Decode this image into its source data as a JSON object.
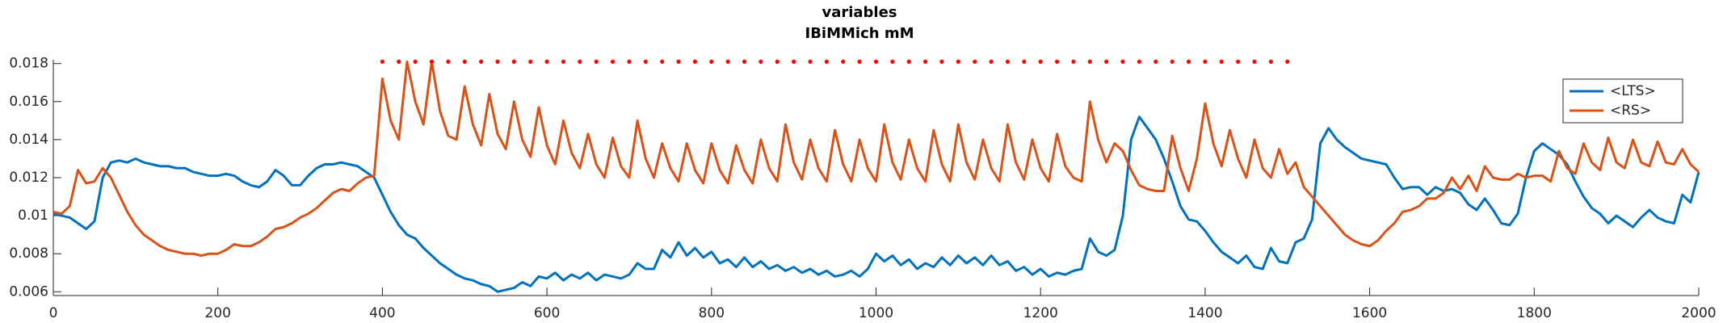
{
  "chart_data": {
    "type": "line",
    "title": "variables",
    "subtitle": "IBiMMich mM",
    "x": [
      0,
      10,
      20,
      30,
      40,
      50,
      60,
      70,
      80,
      90,
      100,
      110,
      120,
      130,
      140,
      150,
      160,
      170,
      180,
      190,
      200,
      210,
      220,
      230,
      240,
      250,
      260,
      270,
      280,
      290,
      300,
      310,
      320,
      330,
      340,
      350,
      360,
      370,
      380,
      390,
      400,
      410,
      420,
      430,
      440,
      450,
      460,
      470,
      480,
      490,
      500,
      510,
      520,
      530,
      540,
      550,
      560,
      570,
      580,
      590,
      600,
      610,
      620,
      630,
      640,
      650,
      660,
      670,
      680,
      690,
      700,
      710,
      720,
      730,
      740,
      750,
      760,
      770,
      780,
      790,
      800,
      810,
      820,
      830,
      840,
      850,
      860,
      870,
      880,
      890,
      900,
      910,
      920,
      930,
      940,
      950,
      960,
      970,
      980,
      990,
      1000,
      1010,
      1020,
      1030,
      1040,
      1050,
      1060,
      1070,
      1080,
      1090,
      1100,
      1110,
      1120,
      1130,
      1140,
      1150,
      1160,
      1170,
      1180,
      1190,
      1200,
      1210,
      1220,
      1230,
      1240,
      1250,
      1260,
      1270,
      1280,
      1290,
      1300,
      1310,
      1320,
      1330,
      1340,
      1350,
      1360,
      1370,
      1380,
      1390,
      1400,
      1410,
      1420,
      1430,
      1440,
      1450,
      1460,
      1470,
      1480,
      1490,
      1500,
      1510,
      1520,
      1530,
      1540,
      1550,
      1560,
      1570,
      1580,
      1590,
      1600,
      1610,
      1620,
      1630,
      1640,
      1650,
      1660,
      1670,
      1680,
      1690,
      1700,
      1710,
      1720,
      1730,
      1740,
      1750,
      1760,
      1770,
      1780,
      1790,
      1800,
      1810,
      1820,
      1830,
      1840,
      1850,
      1860,
      1870,
      1880,
      1890,
      1900,
      1910,
      1920,
      1930,
      1940,
      1950,
      1960,
      1970,
      1980,
      1990,
      2000
    ],
    "series": [
      {
        "name": "<LTS>",
        "color": "#0072bd",
        "values": [
          0.0101,
          0.01,
          0.0099,
          0.0096,
          0.0093,
          0.0097,
          0.012,
          0.0128,
          0.0129,
          0.0128,
          0.013,
          0.0128,
          0.0127,
          0.0126,
          0.0126,
          0.0125,
          0.0125,
          0.0123,
          0.0122,
          0.0121,
          0.0121,
          0.0122,
          0.0121,
          0.0118,
          0.0116,
          0.0115,
          0.0118,
          0.0124,
          0.0121,
          0.0116,
          0.0116,
          0.0121,
          0.0125,
          0.0127,
          0.0127,
          0.0128,
          0.0127,
          0.0126,
          0.0123,
          0.012,
          0.0111,
          0.0102,
          0.0095,
          0.009,
          0.0088,
          0.0083,
          0.0079,
          0.0075,
          0.0072,
          0.0069,
          0.0067,
          0.0066,
          0.0064,
          0.0063,
          0.006,
          0.0061,
          0.0062,
          0.0065,
          0.0063,
          0.0068,
          0.0067,
          0.007,
          0.0066,
          0.0069,
          0.0067,
          0.007,
          0.0066,
          0.0069,
          0.0068,
          0.0067,
          0.0069,
          0.0075,
          0.0072,
          0.0072,
          0.0082,
          0.0078,
          0.0086,
          0.0079,
          0.0083,
          0.0078,
          0.0081,
          0.0075,
          0.0077,
          0.0073,
          0.0078,
          0.0073,
          0.0076,
          0.0072,
          0.0074,
          0.0071,
          0.0073,
          0.007,
          0.0072,
          0.0069,
          0.0071,
          0.0068,
          0.0069,
          0.0071,
          0.0068,
          0.0072,
          0.008,
          0.0076,
          0.0079,
          0.0074,
          0.0077,
          0.0072,
          0.0075,
          0.0073,
          0.0078,
          0.0074,
          0.0079,
          0.0075,
          0.0078,
          0.0074,
          0.0079,
          0.0074,
          0.0076,
          0.0071,
          0.0073,
          0.0069,
          0.0072,
          0.0068,
          0.007,
          0.0069,
          0.0071,
          0.0072,
          0.0088,
          0.0081,
          0.0079,
          0.0082,
          0.01,
          0.014,
          0.0152,
          0.0146,
          0.014,
          0.013,
          0.0118,
          0.0105,
          0.0098,
          0.0097,
          0.0092,
          0.0086,
          0.0081,
          0.0078,
          0.0075,
          0.0079,
          0.0073,
          0.0072,
          0.0083,
          0.0076,
          0.0075,
          0.0086,
          0.0088,
          0.0098,
          0.0138,
          0.0146,
          0.014,
          0.0136,
          0.0133,
          0.013,
          0.0129,
          0.0128,
          0.0127,
          0.012,
          0.0114,
          0.0115,
          0.0115,
          0.0111,
          0.0115,
          0.0113,
          0.0114,
          0.0112,
          0.0106,
          0.0103,
          0.0109,
          0.0103,
          0.0096,
          0.0095,
          0.0101,
          0.012,
          0.0134,
          0.0138,
          0.0135,
          0.0132,
          0.0127,
          0.0118,
          0.011,
          0.0104,
          0.0101,
          0.0096,
          0.01,
          0.0097,
          0.0094,
          0.0099,
          0.0103,
          0.0099,
          0.0097,
          0.0096,
          0.0111,
          0.0107,
          0.0123
        ]
      },
      {
        "name": "<RS>",
        "color": "#d95319",
        "values": [
          0.0102,
          0.0101,
          0.0105,
          0.0124,
          0.0117,
          0.0118,
          0.0125,
          0.012,
          0.0111,
          0.0102,
          0.0095,
          0.009,
          0.0087,
          0.0084,
          0.0082,
          0.0081,
          0.008,
          0.008,
          0.0079,
          0.008,
          0.008,
          0.0082,
          0.0085,
          0.0084,
          0.0084,
          0.0086,
          0.0089,
          0.0093,
          0.0094,
          0.0096,
          0.0099,
          0.0101,
          0.0104,
          0.0108,
          0.0112,
          0.0114,
          0.0113,
          0.0117,
          0.012,
          0.0121,
          0.0172,
          0.015,
          0.014,
          0.0181,
          0.016,
          0.0148,
          0.0181,
          0.0155,
          0.0142,
          0.014,
          0.0168,
          0.0148,
          0.0137,
          0.0164,
          0.0143,
          0.0135,
          0.016,
          0.014,
          0.0131,
          0.0157,
          0.0137,
          0.0127,
          0.015,
          0.0133,
          0.0125,
          0.0143,
          0.0127,
          0.012,
          0.0141,
          0.0126,
          0.012,
          0.015,
          0.013,
          0.012,
          0.0138,
          0.0125,
          0.0118,
          0.0138,
          0.0124,
          0.0117,
          0.0138,
          0.0124,
          0.0117,
          0.0137,
          0.0124,
          0.0117,
          0.014,
          0.0125,
          0.0118,
          0.0148,
          0.0128,
          0.0119,
          0.014,
          0.0125,
          0.0118,
          0.0145,
          0.0127,
          0.0118,
          0.014,
          0.0125,
          0.0118,
          0.0148,
          0.0128,
          0.0119,
          0.014,
          0.0125,
          0.0118,
          0.0145,
          0.0127,
          0.0118,
          0.0148,
          0.0128,
          0.0119,
          0.014,
          0.0125,
          0.0118,
          0.0148,
          0.0128,
          0.0119,
          0.014,
          0.0125,
          0.0118,
          0.0143,
          0.0126,
          0.012,
          0.0118,
          0.016,
          0.014,
          0.0128,
          0.0138,
          0.0134,
          0.0124,
          0.0116,
          0.0114,
          0.0113,
          0.0113,
          0.0142,
          0.0125,
          0.0113,
          0.013,
          0.0159,
          0.0138,
          0.0126,
          0.0145,
          0.013,
          0.012,
          0.014,
          0.0125,
          0.012,
          0.0135,
          0.0122,
          0.0128,
          0.0115,
          0.011,
          0.0105,
          0.01,
          0.0095,
          0.009,
          0.0087,
          0.0085,
          0.0084,
          0.0087,
          0.0092,
          0.0096,
          0.0102,
          0.0103,
          0.0105,
          0.0109,
          0.0109,
          0.0112,
          0.012,
          0.0114,
          0.0121,
          0.0113,
          0.0126,
          0.012,
          0.0119,
          0.0119,
          0.0122,
          0.012,
          0.0121,
          0.0121,
          0.0118,
          0.0134,
          0.0125,
          0.0122,
          0.0138,
          0.0128,
          0.0124,
          0.0141,
          0.0128,
          0.0125,
          0.014,
          0.0128,
          0.0126,
          0.0139,
          0.0128,
          0.0127,
          0.0135,
          0.0127,
          0.0123
        ]
      }
    ],
    "markers": {
      "color": "#ff0000",
      "y": 0.0181,
      "x": [
        400,
        420,
        440,
        460,
        480,
        500,
        520,
        540,
        560,
        580,
        600,
        620,
        640,
        660,
        680,
        700,
        720,
        740,
        760,
        780,
        800,
        820,
        840,
        860,
        880,
        900,
        920,
        940,
        960,
        980,
        1000,
        1020,
        1040,
        1060,
        1080,
        1100,
        1120,
        1140,
        1160,
        1180,
        1200,
        1220,
        1240,
        1260,
        1280,
        1300,
        1320,
        1340,
        1360,
        1380,
        1400,
        1420,
        1440,
        1460,
        1480,
        1500
      ]
    },
    "xlim": [
      0,
      2000
    ],
    "xticks": [
      0,
      200,
      400,
      600,
      800,
      1000,
      1200,
      1400,
      1600,
      1800,
      2000
    ],
    "ylim": [
      0.0058,
      0.0182
    ],
    "yticks": [
      0.006,
      0.008,
      0.01,
      0.012,
      0.014,
      0.016,
      0.018
    ],
    "grid": false,
    "legend": "northeast"
  }
}
